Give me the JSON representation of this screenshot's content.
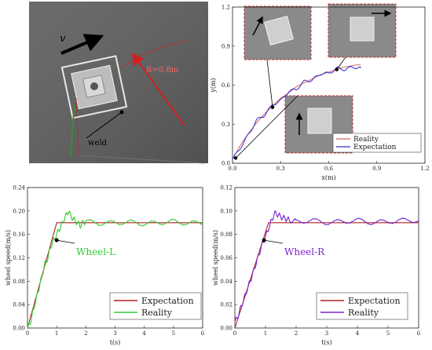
{
  "photo": {
    "velocity_label": "v",
    "radius_label": "R=0.8m",
    "weld_label": "weld"
  },
  "chart_data": [
    {
      "id": "trajectory",
      "type": "line",
      "xlabel": "x(m)",
      "ylabel": "y(m)",
      "xlim": [
        0,
        1.2
      ],
      "ylim": [
        0,
        1.2
      ],
      "xticks": [
        "0.0",
        "0.3",
        "0.6",
        "0.9",
        "1.2"
      ],
      "yticks": [
        "0.0",
        "0.3",
        "0.6",
        "0.9",
        "1.2"
      ],
      "legend_position": "bottom-right",
      "series": [
        {
          "name": "Reality",
          "color": "#e06060",
          "x": [
            0.0,
            0.05,
            0.1,
            0.15,
            0.2,
            0.25,
            0.3,
            0.35,
            0.4,
            0.45,
            0.5,
            0.55,
            0.6,
            0.65,
            0.7,
            0.75,
            0.8
          ],
          "y": [
            0.03,
            0.14,
            0.23,
            0.31,
            0.38,
            0.44,
            0.5,
            0.54,
            0.59,
            0.62,
            0.65,
            0.68,
            0.7,
            0.72,
            0.74,
            0.75,
            0.76
          ]
        },
        {
          "name": "Expectation",
          "color": "#3030d0",
          "x": [
            0.0,
            0.05,
            0.1,
            0.15,
            0.2,
            0.25,
            0.3,
            0.35,
            0.4,
            0.45,
            0.5,
            0.55,
            0.6,
            0.65,
            0.7,
            0.75,
            0.8
          ],
          "y": [
            0.03,
            0.12,
            0.22,
            0.33,
            0.37,
            0.45,
            0.48,
            0.55,
            0.57,
            0.63,
            0.64,
            0.69,
            0.69,
            0.73,
            0.72,
            0.74,
            0.73
          ]
        }
      ]
    },
    {
      "id": "wheel-left",
      "type": "line",
      "xlabel": "t(s)",
      "ylabel": "wheel speed(m/s)",
      "xlim": [
        0,
        6
      ],
      "ylim": [
        0,
        0.24
      ],
      "xticks": [
        "0",
        "1",
        "2",
        "3",
        "4",
        "5",
        "6"
      ],
      "yticks": [
        "0.00",
        "0.04",
        "0.08",
        "0.12",
        "0.16",
        "0.20",
        "0.24"
      ],
      "annotation": "Wheel-L",
      "legend_position": "bottom-right",
      "series": [
        {
          "name": "Expectation",
          "color": "#b02020",
          "x": [
            0,
            1.0,
            6.0
          ],
          "y": [
            0.0,
            0.18,
            0.18
          ]
        },
        {
          "name": "Reality",
          "color": "#33cc33",
          "x": [
            0,
            0.1,
            0.2,
            0.3,
            0.4,
            0.5,
            0.6,
            0.7,
            0.8,
            0.9,
            1.0,
            1.1,
            1.2,
            1.3,
            1.4,
            1.5,
            1.6,
            1.7,
            1.8,
            1.9,
            2.0,
            2.5,
            3.0,
            3.5,
            4.0,
            4.5,
            5.0,
            5.5,
            6.0
          ],
          "y": [
            0.0,
            0.01,
            0.03,
            0.05,
            0.07,
            0.09,
            0.11,
            0.12,
            0.14,
            0.15,
            0.16,
            0.17,
            0.18,
            0.19,
            0.2,
            0.19,
            0.185,
            0.18,
            0.175,
            0.18,
            0.182,
            0.179,
            0.18,
            0.181,
            0.178,
            0.18,
            0.182,
            0.179,
            0.18
          ]
        }
      ]
    },
    {
      "id": "wheel-right",
      "type": "line",
      "xlabel": "t(s)",
      "ylabel": "wheel speed(m/s)",
      "xlim": [
        0,
        6
      ],
      "ylim": [
        0,
        0.12
      ],
      "xticks": [
        "0",
        "1",
        "2",
        "3",
        "4",
        "5",
        "6"
      ],
      "yticks": [
        "0.00",
        "0.02",
        "0.04",
        "0.06",
        "0.08",
        "0.10",
        "0.12"
      ],
      "annotation": "Wheel-R",
      "legend_position": "bottom-right",
      "series": [
        {
          "name": "Expectation",
          "color": "#b02020",
          "x": [
            0,
            1.1,
            6.0
          ],
          "y": [
            0.0,
            0.09,
            0.09
          ]
        },
        {
          "name": "Reality",
          "color": "#7a22cc",
          "x": [
            0,
            0.1,
            0.2,
            0.3,
            0.4,
            0.5,
            0.6,
            0.7,
            0.8,
            0.9,
            1.0,
            1.1,
            1.2,
            1.3,
            1.4,
            1.5,
            1.6,
            1.7,
            1.8,
            2.0,
            2.5,
            3.0,
            3.5,
            4.0,
            4.5,
            5.0,
            5.5,
            6.0
          ],
          "y": [
            0.005,
            0.01,
            0.018,
            0.025,
            0.033,
            0.04,
            0.048,
            0.056,
            0.064,
            0.072,
            0.078,
            0.085,
            0.092,
            0.098,
            0.097,
            0.095,
            0.094,
            0.093,
            0.092,
            0.091,
            0.092,
            0.09,
            0.091,
            0.092,
            0.09,
            0.091,
            0.092,
            0.092
          ]
        }
      ]
    }
  ]
}
